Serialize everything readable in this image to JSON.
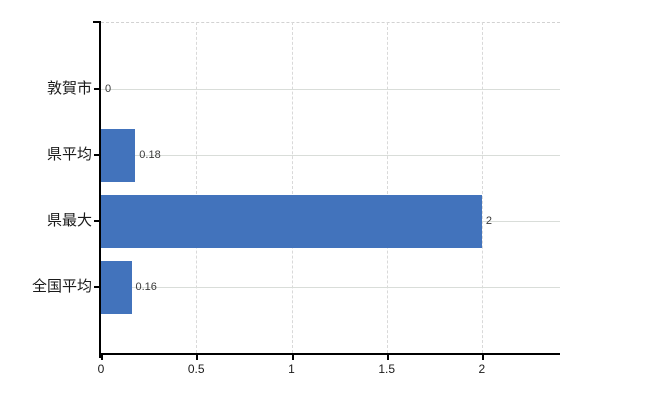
{
  "chart_data": {
    "type": "bar",
    "orientation": "horizontal",
    "title": "",
    "categories": [
      "敦賀市",
      "県平均",
      "県最大",
      "全国平均"
    ],
    "values": [
      0,
      0.18,
      2,
      0.16
    ],
    "value_labels": [
      "0",
      "0.18",
      "2",
      "0.16"
    ],
    "x_ticks": [
      0,
      0.5,
      1,
      1.5,
      2
    ],
    "x_tick_labels": [
      "0",
      "0.5",
      "1",
      "1.5",
      "2"
    ],
    "xlim": [
      0,
      2.41
    ],
    "grid": true,
    "legend": false,
    "colors": {
      "bar": "#4273bc",
      "vertical_gridline": "#d9d9d9",
      "horizontal_gridline": "#d9ddd9",
      "axis": "#000000",
      "plot_top_border": "#d2d2d2",
      "background": "#ffffff",
      "category_text": "#1a1a1a",
      "value_text": "#3a3a3a"
    }
  }
}
